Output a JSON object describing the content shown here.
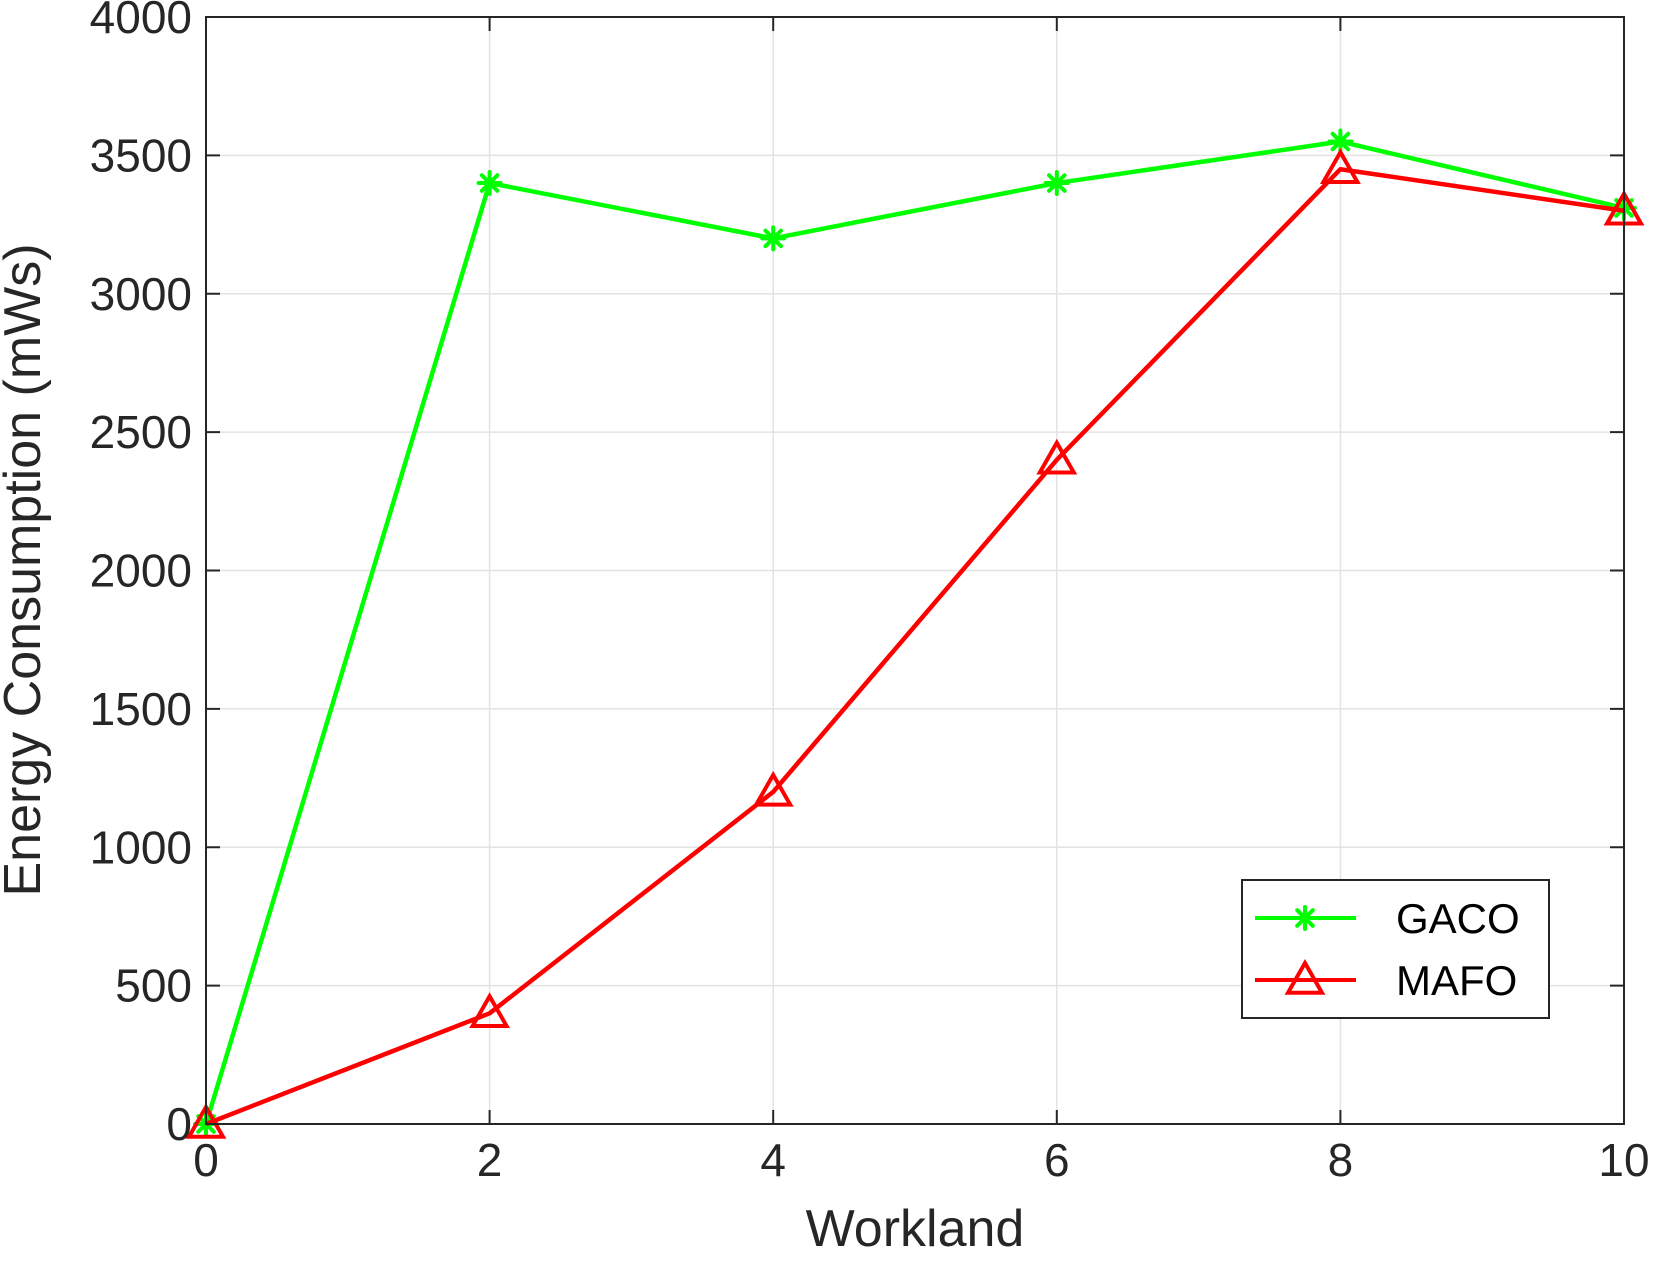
{
  "chart_data": {
    "type": "line",
    "title": "",
    "xlabel": "Workland",
    "ylabel": "Energy Consumption (mWs)",
    "xlim": [
      0,
      10
    ],
    "ylim": [
      0,
      4000
    ],
    "x_ticks": [
      0,
      2,
      4,
      6,
      8,
      10
    ],
    "y_ticks": [
      0,
      500,
      1000,
      1500,
      2000,
      2500,
      3000,
      3500,
      4000
    ],
    "x_tick_labels": [
      "0",
      "2",
      "4",
      "6",
      "8",
      "10"
    ],
    "y_tick_labels": [
      "0",
      "500",
      "1000",
      "1500",
      "2000",
      "2500",
      "3000",
      "3500",
      "4000"
    ],
    "grid": true,
    "legend_position": "bottom-right",
    "series": [
      {
        "name": "GACO",
        "color": "#00ff00",
        "marker": "asterisk",
        "x": [
          0,
          2,
          4,
          6,
          8,
          10
        ],
        "y": [
          0,
          3400,
          3200,
          3400,
          3550,
          3310
        ]
      },
      {
        "name": "MAFO",
        "color": "#ff0000",
        "marker": "triangle",
        "x": [
          0,
          2,
          4,
          6,
          8,
          10
        ],
        "y": [
          0,
          400,
          1200,
          2400,
          3450,
          3300
        ]
      }
    ]
  }
}
